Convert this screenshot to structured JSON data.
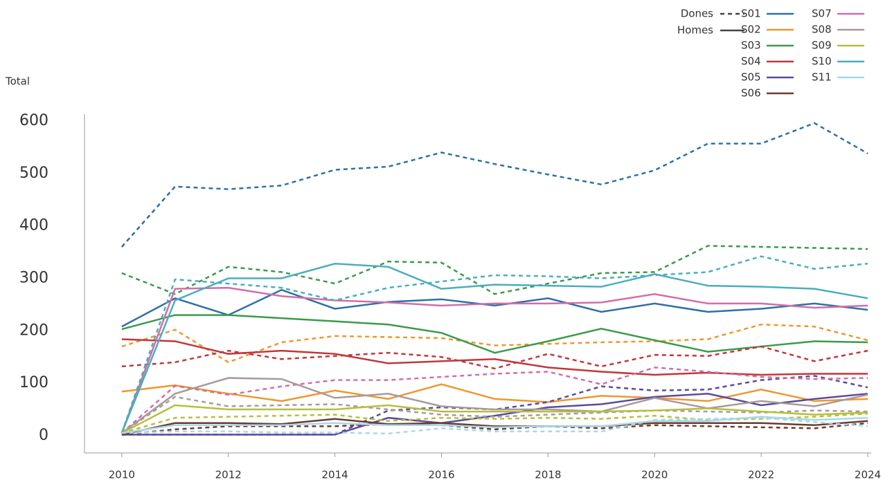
{
  "chart_data": {
    "type": "line",
    "y_label": "Total",
    "x": [
      2010,
      2011,
      2012,
      2013,
      2014,
      2015,
      2016,
      2017,
      2018,
      2019,
      2020,
      2021,
      2022,
      2023,
      2024
    ],
    "xlim": [
      2009.3,
      2024
    ],
    "xticks": [
      2010,
      2012,
      2014,
      2016,
      2018,
      2020,
      2022,
      2024
    ],
    "ylim": [
      -33,
      600
    ],
    "yticks": [
      0,
      100,
      200,
      300,
      400,
      500,
      600
    ],
    "grid": false,
    "groups": [
      {
        "name": "Dones",
        "dash": "6,5"
      },
      {
        "name": "Homes",
        "dash": "none"
      }
    ],
    "sectors": [
      {
        "name": "S01",
        "color": "#2e6fa7",
        "values": [
          [
            360,
            475,
            470,
            477,
            507,
            513,
            540,
            518,
            498,
            479,
            506,
            557,
            557,
            596,
            538
          ],
          [
            208,
            262,
            230,
            278,
            242,
            255,
            260,
            248,
            262,
            236,
            252,
            236,
            242,
            252,
            240
          ]
        ]
      },
      {
        "name": "S02",
        "color": "#f0962a",
        "values": [
          [
            170,
            202,
            140,
            178,
            190,
            188,
            186,
            172,
            175,
            178,
            180,
            184,
            212,
            208,
            182
          ],
          [
            84,
            96,
            80,
            66,
            86,
            70,
            98,
            70,
            64,
            76,
            72,
            66,
            88,
            66,
            70
          ]
        ]
      },
      {
        "name": "S03",
        "color": "#3a9a4a",
        "values": [
          [
            310,
            270,
            322,
            312,
            290,
            332,
            330,
            270,
            290,
            310,
            312,
            362,
            360,
            358,
            356
          ],
          [
            203,
            230,
            230,
            224,
            218,
            212,
            196,
            158,
            180,
            204,
            182,
            160,
            170,
            180,
            178
          ]
        ]
      },
      {
        "name": "S04",
        "color": "#c0373a",
        "values": [
          [
            132,
            140,
            162,
            146,
            152,
            158,
            150,
            128,
            156,
            132,
            154,
            152,
            170,
            142,
            162
          ],
          [
            184,
            180,
            156,
            162,
            156,
            138,
            142,
            146,
            130,
            122,
            116,
            120,
            116,
            118,
            118
          ]
        ]
      },
      {
        "name": "S05",
        "color": "#5b4a9b",
        "values": [
          [
            2,
            2,
            2,
            2,
            2,
            48,
            54,
            50,
            64,
            94,
            86,
            88,
            106,
            114,
            92
          ],
          [
            2,
            2,
            2,
            2,
            2,
            34,
            24,
            38,
            54,
            60,
            74,
            80,
            58,
            70,
            80
          ]
        ]
      },
      {
        "name": "S06",
        "color": "#6b3a2e",
        "values": [
          [
            2,
            12,
            18,
            18,
            18,
            22,
            20,
            12,
            18,
            14,
            20,
            18,
            16,
            14,
            24
          ],
          [
            2,
            24,
            24,
            22,
            32,
            22,
            24,
            18,
            18,
            18,
            24,
            24,
            24,
            20,
            28
          ]
        ]
      },
      {
        "name": "S07",
        "color": "#d06ea8",
        "values": [
          [
            5,
            95,
            78,
            94,
            106,
            106,
            112,
            118,
            122,
            98,
            130,
            122,
            112,
            108,
            110
          ],
          [
            5,
            280,
            282,
            266,
            258,
            254,
            248,
            252,
            252,
            254,
            270,
            252,
            252,
            244,
            248
          ]
        ]
      },
      {
        "name": "S08",
        "color": "#a89a9a",
        "values": [
          [
            5,
            74,
            56,
            58,
            60,
            50,
            40,
            36,
            40,
            44,
            48,
            46,
            44,
            48,
            46
          ],
          [
            5,
            80,
            110,
            108,
            72,
            80,
            56,
            50,
            50,
            46,
            72,
            52,
            66,
            56,
            78
          ]
        ]
      },
      {
        "name": "S09",
        "color": "#b5bf3a",
        "values": [
          [
            5,
            34,
            36,
            38,
            40,
            28,
            34,
            32,
            34,
            32,
            38,
            30,
            32,
            36,
            42
          ],
          [
            5,
            58,
            50,
            50,
            50,
            58,
            46,
            46,
            46,
            46,
            48,
            52,
            46,
            40,
            44
          ]
        ]
      },
      {
        "name": "S10",
        "color": "#4aadbd",
        "values": [
          [
            5,
            298,
            290,
            282,
            258,
            282,
            294,
            306,
            304,
            300,
            306,
            312,
            342,
            318,
            328
          ],
          [
            5,
            258,
            300,
            300,
            328,
            322,
            280,
            288,
            286,
            284,
            308,
            286,
            284,
            280,
            262
          ]
        ]
      },
      {
        "name": "S11",
        "color": "#a8d8e8",
        "values": [
          [
            5,
            8,
            8,
            6,
            6,
            4,
            14,
            8,
            8,
            8,
            30,
            32,
            34,
            26,
            18
          ],
          [
            5,
            20,
            20,
            20,
            24,
            20,
            20,
            16,
            18,
            18,
            28,
            28,
            36,
            30,
            34
          ]
        ]
      }
    ]
  }
}
